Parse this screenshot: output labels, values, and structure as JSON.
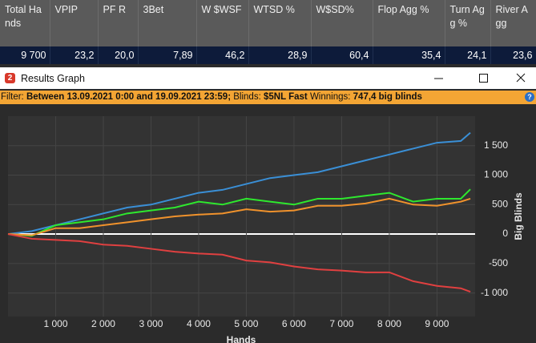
{
  "stats": {
    "headers": [
      "Total Hands",
      "VPIP",
      "PF R",
      "3Bet",
      "W $WSF",
      "WTSD %",
      "W$SD%",
      "Flop Agg %",
      "Turn Agg %",
      "River Agg"
    ],
    "row": [
      "9 700",
      "23,2",
      "20,0",
      "7,89",
      "46,2",
      "28,9",
      "60,4",
      "35,4",
      "24,1",
      "23,6"
    ]
  },
  "window": {
    "title": "Results Graph"
  },
  "filter": {
    "label": "Filter:",
    "period": "Between 13.09.2021 0:00 and 19.09.2021 23:59;",
    "blinds_label": "Blinds:",
    "blinds": "$5NL Fast",
    "winnings_label": "Winnings:",
    "winnings": "747,4 big blinds"
  },
  "chart_data": {
    "type": "line",
    "xlabel": "Hands",
    "ylabel": "Big Blinds",
    "x": [
      0,
      500,
      1000,
      1500,
      2000,
      2500,
      3000,
      3500,
      4000,
      4500,
      5000,
      5500,
      6000,
      6500,
      7000,
      7500,
      8000,
      8500,
      9000,
      9500,
      9700
    ],
    "series": [
      {
        "color": "#3a8fd6",
        "values": [
          0,
          50,
          150,
          250,
          350,
          450,
          500,
          600,
          700,
          750,
          850,
          950,
          1000,
          1050,
          1150,
          1250,
          1350,
          1450,
          1550,
          1580,
          1720
        ]
      },
      {
        "color": "#2ee82e",
        "values": [
          0,
          -30,
          150,
          200,
          250,
          350,
          400,
          450,
          550,
          500,
          600,
          550,
          500,
          600,
          600,
          650,
          700,
          550,
          600,
          600,
          760
        ]
      },
      {
        "color": "#f0922c",
        "values": [
          0,
          -20,
          100,
          100,
          150,
          200,
          250,
          300,
          330,
          350,
          420,
          380,
          400,
          480,
          480,
          520,
          600,
          500,
          480,
          550,
          600
        ]
      },
      {
        "color": "#e04040",
        "values": [
          0,
          -80,
          -100,
          -120,
          -180,
          -200,
          -250,
          -300,
          -330,
          -350,
          -450,
          -480,
          -550,
          -600,
          -620,
          -650,
          -650,
          -800,
          -880,
          -920,
          -980
        ]
      }
    ],
    "xlim": [
      0,
      9800
    ],
    "ylim": [
      -1400,
      2000
    ],
    "xticks": [
      {
        "value": 1000,
        "label": "1 000"
      },
      {
        "value": 2000,
        "label": "2 000"
      },
      {
        "value": 3000,
        "label": "3 000"
      },
      {
        "value": 4000,
        "label": "4 000"
      },
      {
        "value": 5000,
        "label": "5 000"
      },
      {
        "value": 6000,
        "label": "6 000"
      },
      {
        "value": 7000,
        "label": "7 000"
      },
      {
        "value": 8000,
        "label": "8 000"
      },
      {
        "value": 9000,
        "label": "9 000"
      }
    ],
    "yticks": [
      {
        "value": -1000,
        "label": "-1 000"
      },
      -500,
      0,
      500,
      {
        "value": 1000,
        "label": "1 000"
      },
      {
        "value": 1500,
        "label": "1 500"
      }
    ],
    "grid": true
  }
}
